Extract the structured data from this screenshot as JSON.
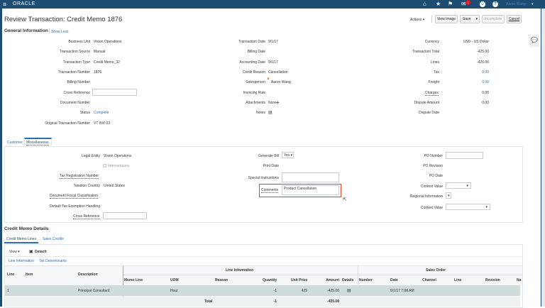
{
  "header": {
    "brand": "ORACLE",
    "notification_count": "1",
    "user": "Aaron Wang"
  },
  "page": {
    "title": "Review Transaction: Credit Memo 1876",
    "actions": "Actions",
    "view_image": "View Image",
    "save": "Save",
    "incomplete": "Incomplete",
    "cancel": "Cancel"
  },
  "general": {
    "title": "General Information",
    "show_less": "Show Less",
    "col1": [
      [
        "Business Unit",
        "Vision Operations"
      ],
      [
        "Transaction Source",
        "Manual"
      ],
      [
        "Transaction Type",
        "Credit Memo_32"
      ],
      [
        "Transaction Number",
        "1876"
      ],
      [
        "Billing Number",
        ""
      ],
      [
        "Cross Reference",
        ""
      ],
      [
        "Document Number",
        ""
      ],
      [
        "Status",
        "Complete"
      ],
      [
        "Original Transaction Number",
        "VT INV 03"
      ]
    ],
    "col2": [
      [
        "Transaction Date",
        "9/1/17"
      ],
      [
        "Billing Date",
        ""
      ],
      [
        "Accounting Date",
        "9/1/17"
      ],
      [
        "Credit Reason",
        "Cancellation"
      ],
      [
        "Salesperson",
        "Aaron Wang"
      ],
      [
        "Invoicing Rule",
        ""
      ],
      [
        "Attachments",
        "None"
      ],
      [
        "Notes",
        ""
      ]
    ],
    "col3": [
      [
        "Currency",
        "USD - US Dollar"
      ],
      [
        "Transaction Total",
        "-425.00"
      ],
      [
        "Lines",
        "-425.00"
      ],
      [
        "Tax",
        "0.00"
      ],
      [
        "Freight",
        "0.00"
      ],
      [
        "Charges",
        "0.00"
      ],
      [
        "Dispute Amount",
        "0.00"
      ],
      [
        "Dispute Date",
        ""
      ]
    ]
  },
  "misc": {
    "tabs": [
      "Customer",
      "Miscellaneous"
    ],
    "legal_entity_label": "Legal Entity",
    "legal_entity": "Vision Operations",
    "intercompany": "Intercompany",
    "tax_reg": "Tax Registration Number",
    "taxation_country_label": "Taxation Country",
    "taxation_country": "United States",
    "doc_fiscal": "Document Fiscal Classification",
    "default_tax": "Default Tax Exemption Handling",
    "cross_ref": "Cross Reference",
    "generate_bill_label": "Generate Bill",
    "generate_bill": "Yes",
    "print_date": "Print Date",
    "special_instructions": "Special Instructions",
    "comments_label": "Comments",
    "comments": "Product Cancellation",
    "po_number": "PO Number",
    "po_revision": "PO Revision",
    "po_date": "PO Date",
    "context_value": "Context Value",
    "regional_info": "Regional Information"
  },
  "details": {
    "title": "Credit Memo Details",
    "tabs": [
      "Credit Memo Lines",
      "Sales Credits"
    ],
    "view": "View",
    "detach": "Detach",
    "subtabs": [
      "Line Information",
      "Tax Determinants"
    ],
    "group_headers": [
      "Line Information",
      "Sales Order"
    ],
    "columns": [
      "Line",
      "Item",
      "Description",
      "Memo Line",
      "UOM",
      "Reason",
      "Quantity",
      "Unit Price",
      "Amount",
      "Details",
      "Number",
      "Date",
      "Channel",
      "Line",
      "Revision",
      "Na"
    ],
    "row": {
      "line": "1",
      "item": "",
      "description": "Principal Consultant",
      "memo_line": "",
      "uom": "Hour",
      "reason": "",
      "quantity": "-1",
      "unit_price": "425",
      "amount": "-425.00",
      "date": "9/1/17 7:08 AM"
    },
    "total": {
      "label": "Total",
      "quantity": "-1",
      "amount": "-425.00"
    }
  },
  "colors": {
    "header": "#1d4d72",
    "link": "#2a6fb3",
    "highlight": "#e0432b",
    "row": "#cfdcdc"
  }
}
